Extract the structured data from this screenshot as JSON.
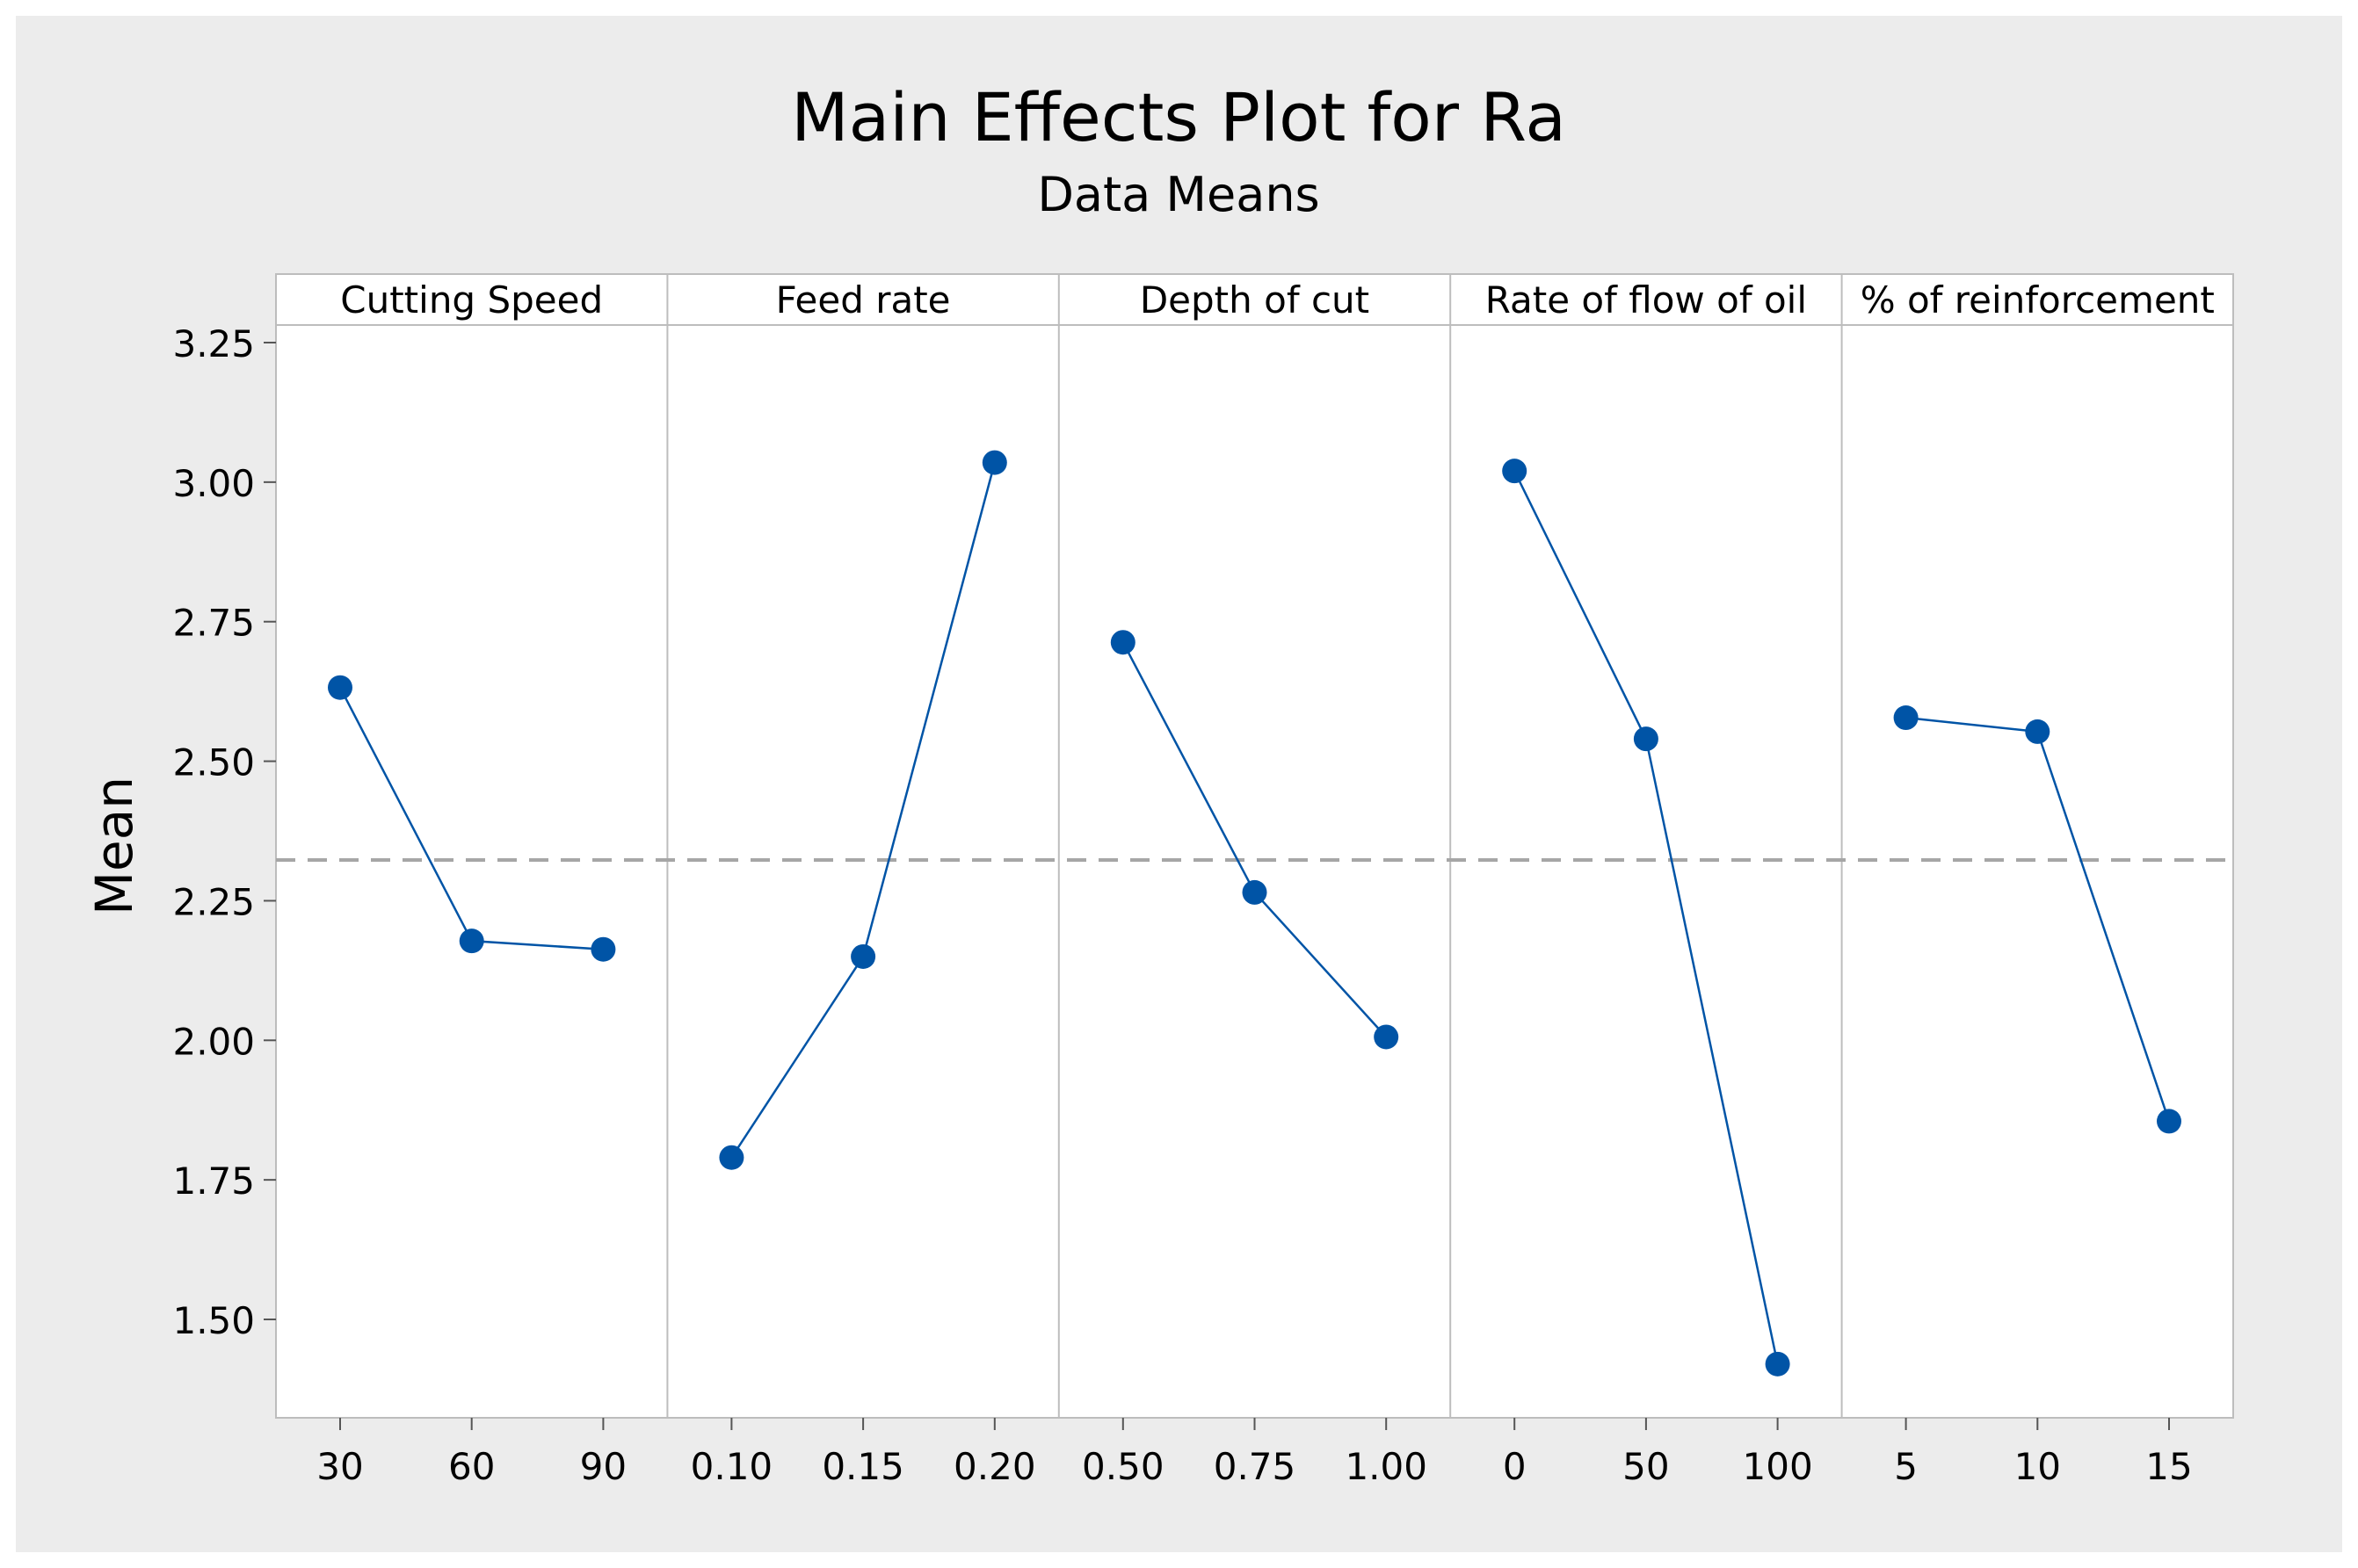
{
  "chart_data": {
    "type": "line",
    "title": "Main Effects Plot for Ra",
    "subtitle": "Data Means",
    "ylabel": "Mean",
    "xlabel": "",
    "ylim": [
      1.33,
      3.37
    ],
    "yticks": [
      "1.50",
      "1.75",
      "2.00",
      "2.25",
      "2.50",
      "2.75",
      "3.00",
      "3.25"
    ],
    "reference_line": 2.323,
    "reference_line_style": "dashed",
    "grid": false,
    "colors": {
      "series": "#0054A6",
      "marker": "#0054A6",
      "reference": "#A6A6A6",
      "outer_background": "#ECECEC",
      "plot_background": "#FFFFFF",
      "frame": "#BDBDBD"
    },
    "panels": [
      {
        "name": "Cutting Speed",
        "categories": [
          "30",
          "60",
          "90"
        ],
        "values": [
          2.632,
          2.178,
          2.163
        ]
      },
      {
        "name": "Feed rate",
        "categories": [
          "0.10",
          "0.15",
          "0.20"
        ],
        "values": [
          1.79,
          2.15,
          3.035
        ]
      },
      {
        "name": "Depth of cut",
        "categories": [
          "0.50",
          "0.75",
          "1.00"
        ],
        "values": [
          2.713,
          2.265,
          2.006
        ]
      },
      {
        "name": "Rate of flow of oil",
        "categories": [
          "0",
          "50",
          "100"
        ],
        "values": [
          3.02,
          2.54,
          1.42
        ]
      },
      {
        "name": "% of reinforcement",
        "categories": [
          "5",
          "10",
          "15"
        ],
        "values": [
          2.578,
          2.553,
          1.855
        ]
      }
    ]
  }
}
